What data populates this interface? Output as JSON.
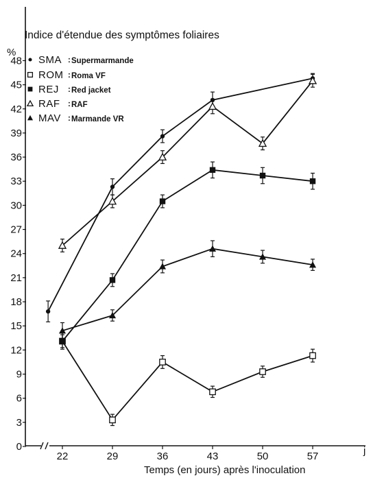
{
  "chart_data": {
    "type": "line",
    "title": "Indice d'étendue des symptômes foliaires",
    "ylabel": "%",
    "xlabel": "Temps (en jours) après l'inoculation",
    "x_unit": "j",
    "x_ticks": [
      22,
      29,
      36,
      43,
      50,
      57
    ],
    "y_ticks": [
      0,
      3,
      6,
      9,
      12,
      15,
      18,
      21,
      24,
      27,
      30,
      33,
      36,
      39,
      42,
      45,
      48
    ],
    "ylim": [
      0,
      48
    ],
    "grid": false,
    "legend_position": "top-left",
    "series": [
      {
        "code": "SMA",
        "name": "Supermarmande",
        "marker": "filled-circle",
        "x": [
          20,
          29,
          36,
          43,
          57
        ],
        "y": [
          16.8,
          32.3,
          38.6,
          43.1,
          45.8
        ],
        "err": [
          1.3,
          1.0,
          0.8,
          1.0,
          0.6
        ]
      },
      {
        "code": "ROM",
        "name": "Roma VF",
        "marker": "open-square",
        "x": [
          22,
          29,
          36,
          43,
          50,
          57
        ],
        "y": [
          13.1,
          3.3,
          10.5,
          6.8,
          9.3,
          11.3
        ],
        "err": [
          1.0,
          0.7,
          0.8,
          0.7,
          0.7,
          0.8
        ]
      },
      {
        "code": "REJ",
        "name": "Red jacket",
        "marker": "filled-square",
        "x": [
          22,
          29,
          36,
          43,
          50,
          57
        ],
        "y": [
          13.1,
          20.7,
          30.5,
          34.4,
          33.7,
          33.0
        ],
        "err": [
          0.8,
          0.8,
          0.8,
          1.0,
          1.0,
          1.0
        ]
      },
      {
        "code": "RAF",
        "name": "RAF",
        "marker": "open-triangle",
        "x": [
          22,
          29,
          36,
          43,
          50,
          57
        ],
        "y": [
          25.0,
          30.5,
          36.0,
          42.3,
          37.7,
          45.5
        ],
        "err": [
          0.8,
          0.8,
          0.8,
          0.9,
          0.8,
          0.8
        ]
      },
      {
        "code": "MAV",
        "name": "Marmande VR",
        "marker": "filled-triangle",
        "x": [
          22,
          29,
          36,
          43,
          50,
          57
        ],
        "y": [
          14.4,
          16.3,
          22.4,
          24.6,
          23.6,
          22.6
        ],
        "err": [
          1.0,
          0.7,
          0.8,
          1.0,
          0.8,
          0.7
        ]
      }
    ]
  }
}
